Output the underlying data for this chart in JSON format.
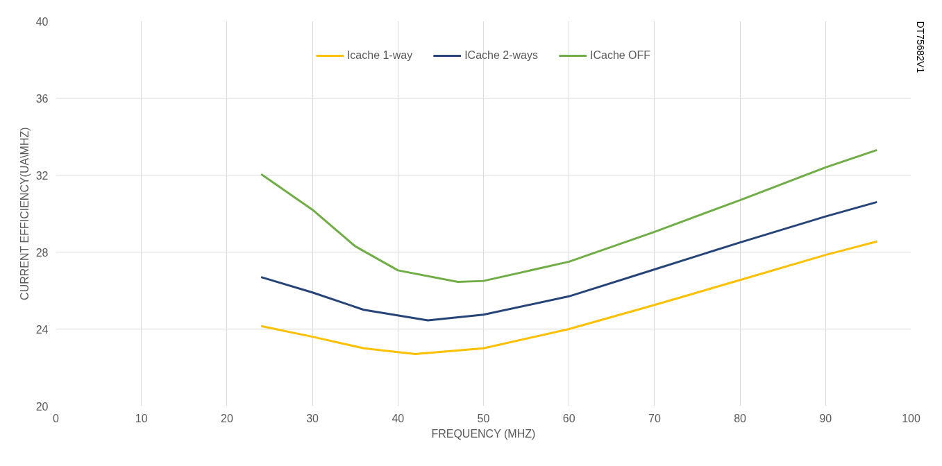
{
  "chart_data": {
    "type": "line",
    "xlabel": "FREQUENCY (MHZ)",
    "ylabel": "CURRENT EFFICIENCY(UA\\MHZ)",
    "xlim": [
      0,
      100
    ],
    "xticks": [
      0,
      10,
      20,
      30,
      40,
      50,
      60,
      70,
      80,
      90,
      100
    ],
    "ylim": [
      20,
      40
    ],
    "yticks": [
      20,
      24,
      28,
      32,
      36,
      40
    ],
    "grid": true,
    "legend": "top",
    "marker": "none",
    "line_style": "solid",
    "annotations": [
      "DT75682V1"
    ],
    "series": [
      {
        "name": "Icache 1-way",
        "color": "#ffc000",
        "x": [
          24,
          30,
          36,
          42,
          50,
          60,
          70,
          80,
          90,
          96
        ],
        "values": [
          24.15,
          23.6,
          23.0,
          22.7,
          23.0,
          24.0,
          25.25,
          26.55,
          27.85,
          28.55
        ]
      },
      {
        "name": "ICache 2-ways",
        "color": "#264478",
        "x": [
          24,
          30,
          36,
          43.5,
          50,
          60,
          70,
          80,
          90,
          96
        ],
        "values": [
          26.7,
          25.9,
          25.0,
          24.45,
          24.75,
          25.7,
          27.1,
          28.5,
          29.85,
          30.6
        ]
      },
      {
        "name": "ICache OFF",
        "color": "#70ad47",
        "x": [
          24,
          30,
          35,
          40,
          47,
          50,
          60,
          70,
          80,
          90,
          96
        ],
        "values": [
          32.05,
          30.2,
          28.3,
          27.05,
          26.45,
          26.5,
          27.5,
          29.05,
          30.7,
          32.4,
          33.3
        ]
      }
    ]
  }
}
